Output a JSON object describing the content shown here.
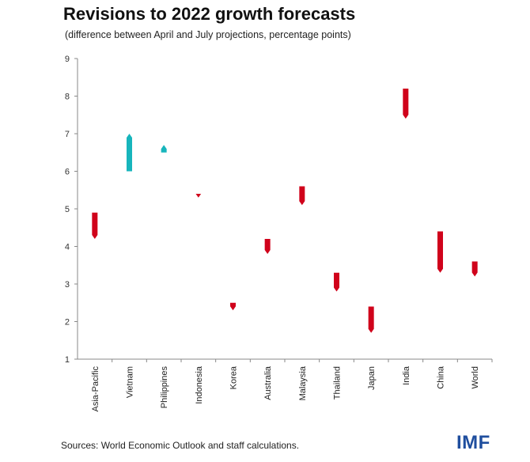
{
  "title": "Revisions to 2022 growth forecasts",
  "subtitle": "(difference between April and July projections, percentage points)",
  "source": "Sources: World Economic Outlook and staff calculations.",
  "logo_text": "IMF",
  "colors": {
    "downgrade": "#d0021b",
    "upgrade": "#17b5bc",
    "axis": "#888888"
  },
  "chart_data": {
    "type": "bar",
    "categories": [
      "Asia-Pacific",
      "Vietnam",
      "Philippines",
      "Indonesia",
      "Korea",
      "Australia",
      "Malaysia",
      "Thailand",
      "Japan",
      "India",
      "China",
      "World"
    ],
    "series": [
      {
        "name": "April",
        "values": [
          4.9,
          6.0,
          6.5,
          5.4,
          2.5,
          4.2,
          5.6,
          3.3,
          2.4,
          8.2,
          4.4,
          3.6
        ]
      },
      {
        "name": "July",
        "values": [
          4.2,
          7.0,
          6.7,
          5.3,
          2.3,
          3.8,
          5.1,
          2.8,
          1.7,
          7.4,
          3.3,
          3.2
        ]
      }
    ],
    "ylim": [
      1,
      9
    ],
    "yticks": [
      "1",
      "2",
      "3",
      "4",
      "5",
      "6",
      "7",
      "8",
      "9"
    ],
    "xlabel": "",
    "ylabel": "",
    "grid": false
  }
}
